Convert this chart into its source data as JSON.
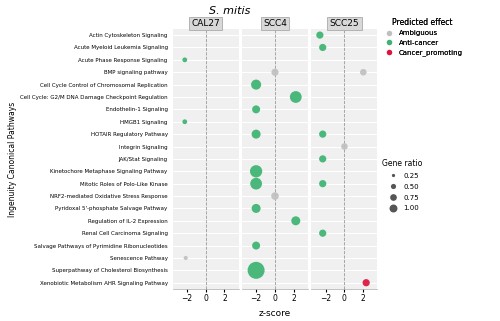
{
  "title": "S. mitis",
  "xlabel": "z-score",
  "ylabel": "Ingenuity Canonical Pathways",
  "panels": [
    "CAL27",
    "SCC4",
    "SCC25"
  ],
  "pathways": [
    "Actin Cytoskeleton Signaling",
    "Acute Myeloid Leukemia Signaling",
    "Acute Phase Response Signaling",
    "BMP signaling pathway",
    "Cell Cycle Control of Chromosomal Replication",
    "Cell Cycle: G2/M DNA Damage Checkpoint Regulation",
    "Endothelin-1 Signaling",
    "HMGB1 Signaling",
    "HOTAIR Regulatory Pathway",
    "Integrin Signaling",
    "JAK/Stat Signaling",
    "Kinetochore Metaphase Signaling Pathway",
    "Mitotic Roles of Polo-Like Kinase",
    "NRF2-mediated Oxidative Stress Response",
    "Pyridoxal 5'-phosphate Salvage Pathway",
    "Regulation of IL-2 Expression",
    "Renal Cell Carcinoma Signaling",
    "Salvage Pathways of Pyrimidine Ribonucleotides",
    "Senescence Pathway",
    "Superpathway of Cholesterol Biosynthesis",
    "Xenobiotic Metabolism AHR Signaling Pathway"
  ],
  "data": {
    "CAL27": [
      {
        "pathway": "Acute Phase Response Signaling",
        "zscore": -2.2,
        "color": "green",
        "gene_ratio": 0.08
      },
      {
        "pathway": "HMGB1 Signaling",
        "zscore": -2.2,
        "color": "green",
        "gene_ratio": 0.08
      },
      {
        "pathway": "Senescence Pathway",
        "zscore": -2.1,
        "color": "gray",
        "gene_ratio": 0.06
      }
    ],
    "SCC4": [
      {
        "pathway": "BMP signaling pathway",
        "zscore": 0.0,
        "color": "gray",
        "gene_ratio": 0.18
      },
      {
        "pathway": "Cell Cycle Control of Chromosomal Replication",
        "zscore": -2.0,
        "color": "green",
        "gene_ratio": 0.35
      },
      {
        "pathway": "Cell Cycle: G2/M DNA Damage Checkpoint Regulation",
        "zscore": 2.2,
        "color": "green",
        "gene_ratio": 0.48
      },
      {
        "pathway": "Endothelin-1 Signaling",
        "zscore": -2.0,
        "color": "green",
        "gene_ratio": 0.22
      },
      {
        "pathway": "HOTAIR Regulatory Pathway",
        "zscore": -2.0,
        "color": "green",
        "gene_ratio": 0.28
      },
      {
        "pathway": "Kinetochore Metaphase Signaling Pathway",
        "zscore": -2.0,
        "color": "green",
        "gene_ratio": 0.52
      },
      {
        "pathway": "Mitotic Roles of Polo-Like Kinase",
        "zscore": -2.0,
        "color": "green",
        "gene_ratio": 0.48
      },
      {
        "pathway": "NRF2-mediated Oxidative Stress Response",
        "zscore": 0.0,
        "color": "gray",
        "gene_ratio": 0.2
      },
      {
        "pathway": "Pyridoxal 5'-phosphate Salvage Pathway",
        "zscore": -2.0,
        "color": "green",
        "gene_ratio": 0.28
      },
      {
        "pathway": "Regulation of IL-2 Expression",
        "zscore": 2.2,
        "color": "green",
        "gene_ratio": 0.28
      },
      {
        "pathway": "Salvage Pathways of Pyrimidine Ribonucleotides",
        "zscore": -2.0,
        "color": "green",
        "gene_ratio": 0.22
      },
      {
        "pathway": "Superpathway of Cholesterol Biosynthesis",
        "zscore": -2.0,
        "color": "green",
        "gene_ratio": 1.0
      }
    ],
    "SCC25": [
      {
        "pathway": "Actin Cytoskeleton Signaling",
        "zscore": -2.6,
        "color": "green",
        "gene_ratio": 0.18
      },
      {
        "pathway": "Acute Myeloid Leukemia Signaling",
        "zscore": -2.3,
        "color": "green",
        "gene_ratio": 0.18
      },
      {
        "pathway": "BMP signaling pathway",
        "zscore": 2.0,
        "color": "gray",
        "gene_ratio": 0.15
      },
      {
        "pathway": "HOTAIR Regulatory Pathway",
        "zscore": -2.3,
        "color": "green",
        "gene_ratio": 0.18
      },
      {
        "pathway": "Integrin Signaling",
        "zscore": 0.0,
        "color": "gray",
        "gene_ratio": 0.15
      },
      {
        "pathway": "JAK/Stat Signaling",
        "zscore": -2.3,
        "color": "green",
        "gene_ratio": 0.18
      },
      {
        "pathway": "Mitotic Roles of Polo-Like Kinase",
        "zscore": -2.3,
        "color": "green",
        "gene_ratio": 0.18
      },
      {
        "pathway": "Renal Cell Carcinoma Signaling",
        "zscore": -2.3,
        "color": "green",
        "gene_ratio": 0.18
      },
      {
        "pathway": "Xenobiotic Metabolism AHR Signaling Pathway",
        "zscore": 2.3,
        "color": "red",
        "gene_ratio": 0.18
      }
    ]
  },
  "color_map": {
    "green": "#3CB371",
    "gray": "#C0C0C0",
    "red": "#DC143C"
  },
  "xlim": [
    -3.5,
    3.5
  ],
  "xticks": [
    -2,
    0,
    2
  ],
  "background_color": "#FFFFFF",
  "panel_header_bg": "#D8D8D8",
  "panel_plot_bg": "#F0F0F0",
  "grid_color": "#FFFFFF",
  "dashed_line_color": "#999999"
}
